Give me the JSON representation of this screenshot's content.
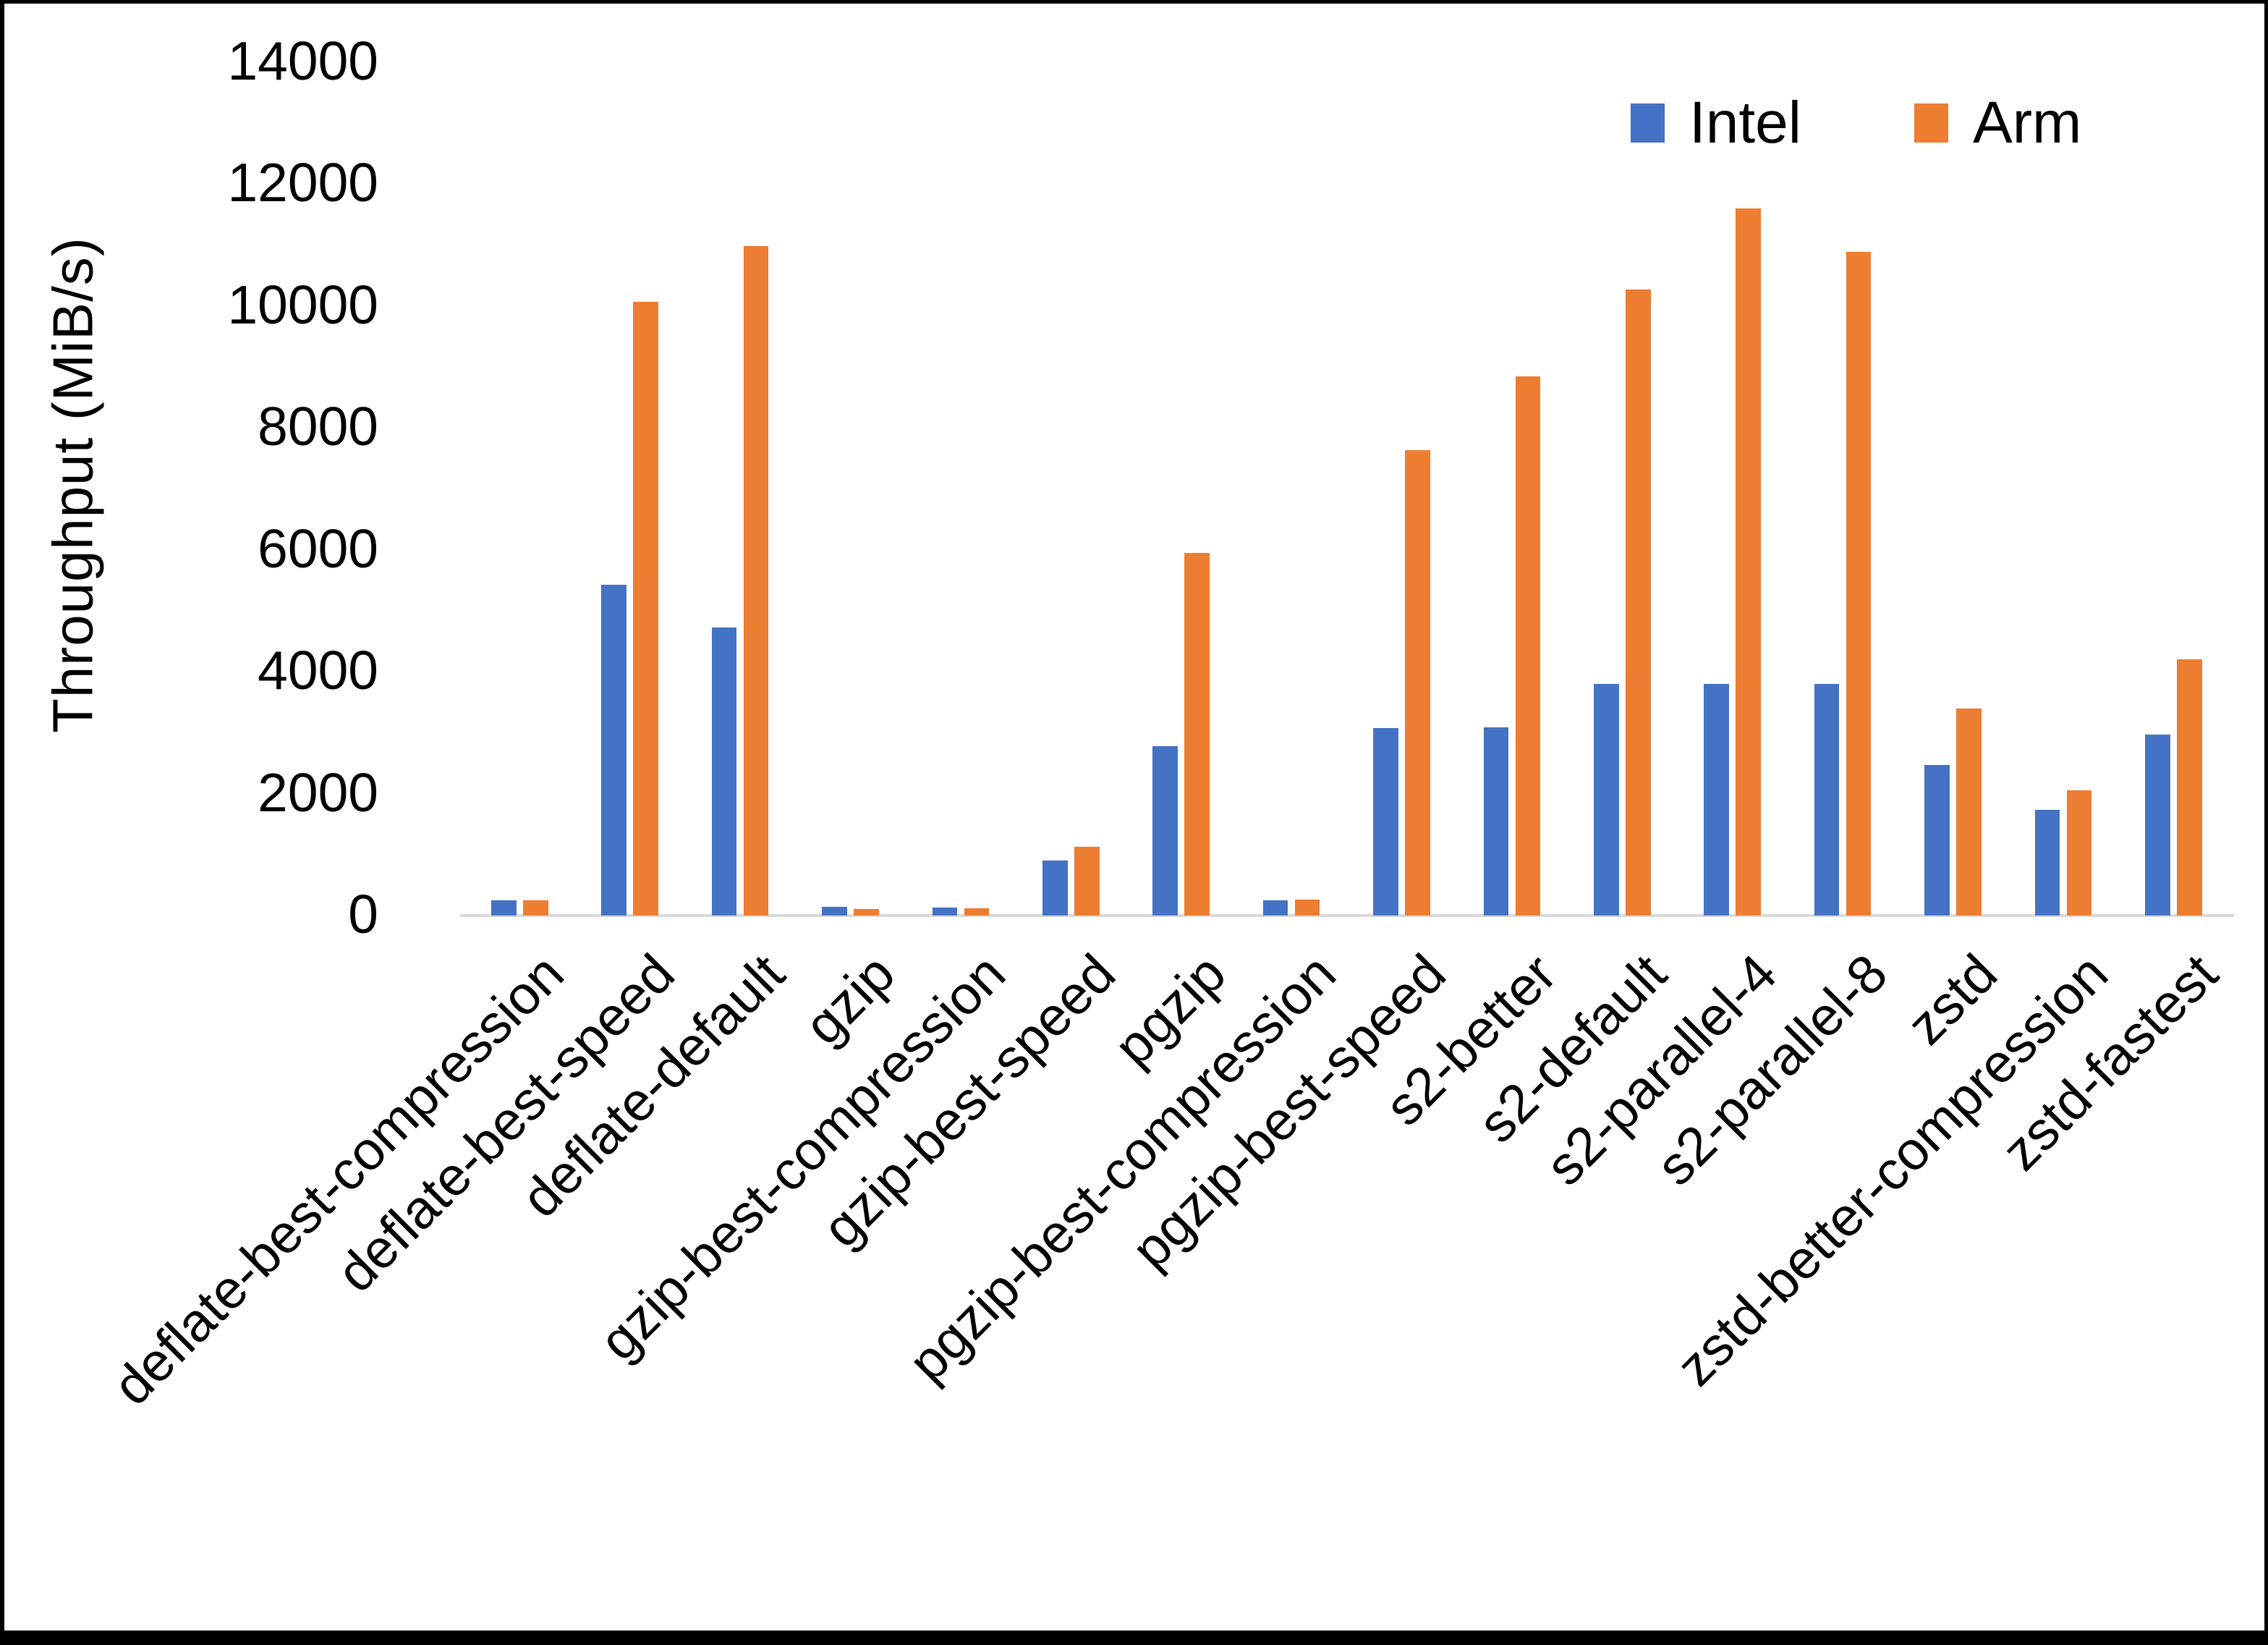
{
  "chart_data": {
    "type": "bar",
    "title": "",
    "ylabel": "Throughput (MiB/s)",
    "xlabel": "",
    "ylim": [
      0,
      14000
    ],
    "yticks": [
      0,
      2000,
      4000,
      6000,
      8000,
      10000,
      12000,
      14000
    ],
    "grid": false,
    "legend_position": "top-right",
    "axis_line_color": "#d9d9d9",
    "categories": [
      "deflate-best-compression",
      "deflate-best-speed",
      "deflate-default",
      "gzip",
      "gzip-best-compression",
      "gzip-best-speed",
      "pgzip",
      "pgzip-best-compression",
      "pgzip-best-speed",
      "s2-better",
      "s2-default",
      "s2-parallel-4",
      "s2-parallel-8",
      "zstd",
      "zstd-better-compression",
      "zstd-fastest"
    ],
    "series": [
      {
        "name": "Intel",
        "color": "#4472C4",
        "values": [
          250,
          5430,
          4720,
          140,
          130,
          900,
          2780,
          250,
          3080,
          3090,
          3800,
          3800,
          3800,
          2470,
          1730,
          2970
        ]
      },
      {
        "name": "Arm",
        "color": "#ED7D31",
        "values": [
          250,
          10060,
          10980,
          110,
          120,
          1130,
          5950,
          260,
          7630,
          8840,
          10270,
          11600,
          10890,
          3400,
          2050,
          4200
        ]
      }
    ]
  }
}
